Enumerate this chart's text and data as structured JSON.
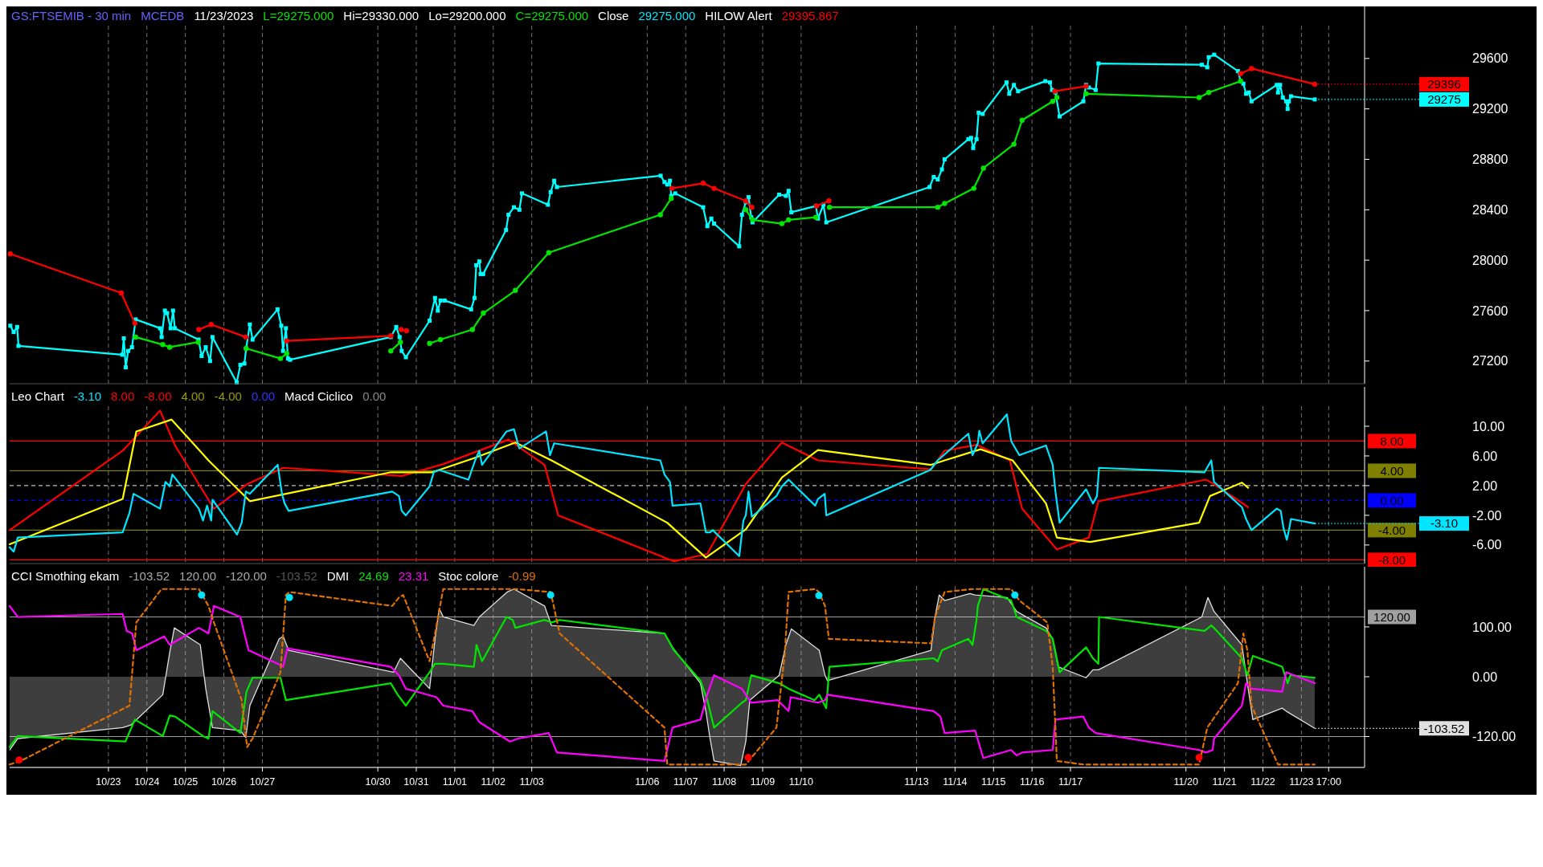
{
  "chart_data": [
    {
      "type": "line",
      "xlim": [
        "--10-20T10:24",
        "--11-24T15:24"
      ],
      "ylim": [
        27020,
        29860
      ],
      "yticks": [
        27200,
        27600,
        28000,
        28400,
        28800,
        29200,
        29600
      ],
      "xticks": [
        "--10-23",
        "--10-24",
        "--10-25",
        "--10-26",
        "--10-27",
        "--10-30",
        "--10-31",
        "--11-01",
        "--11-02",
        "--11-03",
        "--11-06",
        "--11-07",
        "--11-08",
        "--11-09",
        "--11-10",
        "--11-13",
        "--11-14",
        "--11-15",
        "--11-16",
        "--11-17",
        "--11-20",
        "--11-21",
        "--11-22",
        "--11-23",
        "--11-23T17:00"
      ],
      "tick_labels": "y",
      "grid": "x",
      "annotations": [
        "GS:FTSEMIB - 30 min",
        "MCEDB",
        "11/23/2023",
        "L=29275.000",
        "Hi=29330.000",
        "Lo=29200.000",
        "C=29275.000",
        "Close",
        "29275.000",
        "HILOW Alert",
        "29395.867",
        {
          "text": "29396",
          "x": "--11-23T08:18",
          "y": 29396
        },
        {
          "text": "29275",
          "x": "--11-23T08:18",
          "y": 29275
        }
      ],
      "series": [
        {
          "color": "#00ffff",
          "marker": "square",
          "x": [
            "--10-20T10:48",
            "--10-20T12:54",
            "--10-20T15:06",
            "--10-20T15:54",
            "--10-23T08:36",
            "--10-23T09:36",
            "--10-23T10:48",
            "--10-23T12:18",
            "--10-23T14:42",
            "--10-23T17:00",
            "--10-24T08:12",
            "--10-24T09:12",
            "--10-24T11:12",
            "--10-24T12:36",
            "--10-24T14:48",
            "--10-24T16:18",
            "--10-24T17:24",
            "--10-25T08:12",
            "--10-25T10:06",
            "--10-25T12:42",
            "--10-25T15:24",
            "--10-25T16:54",
            "--10-26T08:00",
            "--10-26T10:18",
            "--10-26T12:48",
            "--10-26T13:54",
            "--10-26T16:12",
            "--10-26T17:54",
            "--10-27T09:30",
            "--10-27T11:48",
            "--10-27T12:54",
            "--10-27T14:42",
            "--10-27T16:00",
            "--10-27T17:18",
            "--10-30T08:06",
            "--10-30T11:30",
            "--10-30T13:36",
            "--10-30T14:54",
            "--10-30T17:30",
            "--10-31T08:18",
            "--10-31T11:42",
            "--10-31T13:24",
            "--10-31T15:06",
            "--10-31T17:42",
            "--11-01T10:12",
            "--11-01T12:18",
            "--11-01T13:24",
            "--11-01T15:18",
            "--11-01T16:06",
            "--11-01T17:42",
            "--11-02T08:00",
            "--11-02T09:30",
            "--11-02T12:54",
            "--11-02T16:18",
            "--11-02T17:54",
            "--11-03T10:06",
            "--11-03T11:48",
            "--11-03T14:00",
            "--11-03T15:42",
            "--11-06T08:24",
            "--11-06T10:48",
            "--11-06T12:30",
            "--11-06T14:12",
            "--11-06T15:00",
            "--11-06T17:30",
            "--11-07T10:54",
            "--11-07T13:30",
            "--11-07T16:00",
            "--11-07T17:42",
            "--11-08T09:24",
            "--11-08T11:06",
            "--11-08T13:30",
            "--11-08T15:12",
            "--11-08T16:54",
            "--11-08T17:42",
            "--11-09T10:18",
            "--11-09T14:30",
            "--11-09T16:12",
            "--11-09T17:54",
            "--11-10T09:12",
            "--11-10T10:30",
            "--11-10T13:54",
            "--11-10T15:42",
            "--11-13T08:06",
            "--11-13T10:42",
            "--11-13T13:12",
            "--11-13T15:48",
            "--11-13T17:30",
            "--11-14T08:18",
            "--11-14T10:00",
            "--11-14T11:18",
            "--11-14T13:24",
            "--11-14T14:42",
            "--11-14T17:12",
            "--11-15T08:06",
            "--11-15T09:48",
            "--11-15T12:42",
            "--11-15T15:18",
            "--11-16T08:18",
            "--11-16T11:12",
            "--11-16T12:30",
            "--11-16T14:36",
            "--11-16T17:12",
            "--11-17T08:00",
            "--11-17T09:42",
            "--11-17T11:24",
            "--11-17T15:42",
            "--11-17T17:24",
            "--11-20T09:54",
            "--11-20T13:18",
            "--11-20T14:12",
            "--11-20T17:36",
            "--11-21T08:24",
            "--11-21T10:06",
            "--11-21T11:48",
            "--11-21T13:30",
            "--11-21T15:12",
            "--11-21T16:54",
            "--11-22T08:36",
            "--11-22T09:24",
            "--11-22T10:42",
            "--11-22T12:24",
            "--11-22T14:30",
            "--11-22T15:24",
            "--11-22T16:12",
            "--11-22T17:30",
            "--11-23T08:18"
          ],
          "values": [
            27480,
            27430,
            27470,
            27320,
            27250,
            27380,
            27150,
            27280,
            27310,
            27530,
            27460,
            27390,
            27600,
            27580,
            27460,
            27600,
            27460,
            27370,
            27240,
            27310,
            27200,
            27390,
            27030,
            27170,
            27180,
            27300,
            27490,
            27370,
            27610,
            27480,
            27280,
            27460,
            27220,
            27210,
            27390,
            27470,
            27390,
            27280,
            27230,
            27520,
            27700,
            27600,
            27680,
            27680,
            27610,
            27700,
            27960,
            27990,
            27890,
            27890,
            28240,
            28360,
            28420,
            28400,
            28530,
            28440,
            28540,
            28630,
            28580,
            28670,
            28620,
            28600,
            28630,
            28510,
            28530,
            28420,
            28270,
            28330,
            28290,
            28110,
            28360,
            28460,
            28500,
            28340,
            28300,
            28520,
            28510,
            28550,
            28380,
            28430,
            28330,
            28440,
            28300,
            28580,
            28660,
            28640,
            28720,
            28800,
            28960,
            28970,
            28890,
            28960,
            29170,
            29160,
            29410,
            29320,
            29390,
            29340,
            29420,
            29410,
            29350,
            29330,
            29140,
            29260,
            29390,
            29370,
            29350,
            29560,
            29550,
            29530,
            29610,
            29630,
            29500,
            29420,
            29400,
            29320,
            29330,
            29260,
            29390,
            29330,
            29390,
            29290,
            29260,
            29200,
            29260,
            29300,
            29275
          ]
        },
        {
          "color": "#ff0000",
          "marker": "circle",
          "x": [
            "--10-20T10:48",
            "--10-23T08:00",
            "--10-23T16:30",
            "--10-24T13:36",
            "--10-25T08:24",
            "--10-25T16:06",
            "--10-26T13:42",
            "--10-27T09:36",
            "--10-27T15:12",
            "--10-30T08:06",
            "--10-30T11:36",
            "--10-30T14:30",
            "--10-30T17:54",
            "--11-02T11:36",
            "--11-06T15:24",
            "--11-07T10:54",
            "--11-07T17:42",
            "--11-08T13:30",
            "--11-08T17:18",
            "--11-09T13:36",
            "--11-10T09:36",
            "--11-10T17:18",
            "--11-14T16:36",
            "--11-16T14:12",
            "--11-17T09:42",
            "--11-20T09:36",
            "--11-21T10:06",
            "--11-21T16:54",
            "--11-23T08:18"
          ],
          "values": [
            28050,
            27740,
            27500,
            null,
            27450,
            27490,
            27390,
            null,
            27360,
            27400,
            null,
            27450,
            27440,
            null,
            28570,
            28610,
            28570,
            28470,
            28420,
            null,
            28430,
            28470,
            null,
            29340,
            29380,
            null,
            29480,
            29520,
            29396
          ]
        },
        {
          "color": "#00e600",
          "marker": "circle",
          "x": [
            "--10-23T17:00",
            "--10-24T09:54",
            "--10-24T14:12",
            "--10-25T08:00",
            "--10-25T16:36",
            "--10-26T13:54",
            "--10-27T11:18",
            "--10-27T15:12",
            "--10-27T16:36",
            "--10-30T08:06",
            "--10-30T14:06",
            "--10-30T16:36",
            "--10-31T08:18",
            "--10-31T15:06",
            "--11-01T11:00",
            "--11-01T17:48",
            "--11-02T13:48",
            "--11-03T10:36",
            "--11-06T08:12",
            "--11-06T15:00",
            "--11-07T14:36",
            "--11-08T13:30",
            "--11-08T17:42",
            "--11-09T12:00",
            "--11-09T16:12",
            "--11-10T09:12",
            "--11-10T13:36",
            "--11-10T17:42",
            "--11-13T13:12",
            "--11-13T17:30",
            "--11-14T11:42",
            "--11-14T17:42",
            "--11-15T12:42",
            "--11-15T17:48",
            "--11-16T12:54",
            "--11-16T15:30",
            "--11-16T17:36",
            "--11-17T09:42",
            "--11-20T08:12",
            "--11-20T14:12",
            "--11-21T10:06"
          ],
          "values": [
            27390,
            27330,
            27310,
            27350,
            null,
            27300,
            27220,
            27260,
            null,
            27280,
            27350,
            null,
            27340,
            27370,
            27450,
            27580,
            27760,
            28060,
            28360,
            28490,
            null,
            28400,
            28320,
            28290,
            28320,
            28340,
            null,
            28420,
            28420,
            28450,
            28570,
            28730,
            28920,
            29110,
            29260,
            29290,
            null,
            29320,
            29290,
            29330,
            29420
          ]
        }
      ]
    },
    {
      "type": "line",
      "xlim": [
        "--10-20T10:24",
        "--11-24T15:24"
      ],
      "ylim": [
        -8.5,
        12.7
      ],
      "yticks": [
        {
          "value": 10,
          "label": "10.00"
        },
        {
          "value": 6,
          "label": "6.00"
        },
        {
          "value": 2,
          "label": "2.00"
        },
        {
          "value": -2,
          "label": "-2.00"
        },
        {
          "value": -6,
          "label": "-6.00"
        }
      ],
      "xticks": [
        "--10-23",
        "--10-24",
        "--10-25",
        "--10-26",
        "--10-27",
        "--10-30",
        "--10-31",
        "--11-01",
        "--11-02",
        "--11-03",
        "--11-06",
        "--11-07",
        "--11-08",
        "--11-09",
        "--11-10",
        "--11-13",
        "--11-14",
        "--11-15",
        "--11-16",
        "--11-17",
        "--11-20",
        "--11-21",
        "--11-22",
        "--11-23",
        "--11-23T17:00"
      ],
      "tick_labels": "y",
      "grid": "x",
      "annotations": [
        "Leo Chart",
        "-3.10",
        "8.00",
        "-8.00",
        "4.00",
        "-4.00",
        "0.00",
        "Macd Ciclico",
        "0.00",
        {
          "text": "-3.10",
          "x": "--11-23T08:18",
          "y": -3.1
        }
      ],
      "ref_lines": [
        {
          "axis": "y",
          "value": 8,
          "label": "8.00",
          "color": "#ff0000"
        },
        {
          "axis": "y",
          "value": 4,
          "label": "4.00",
          "color": "#808000"
        },
        {
          "axis": "y",
          "value": 2,
          "color": "#c0c0c0",
          "line_style": "dashed"
        },
        {
          "axis": "y",
          "value": 0,
          "label": "0.00",
          "color": "#0000ff",
          "line_style": "dashed"
        },
        {
          "axis": "y",
          "value": -4,
          "label": "-4.00",
          "color": "#808000"
        },
        {
          "axis": "y",
          "value": -8,
          "label": "-8.00",
          "color": "#ff0000"
        }
      ],
      "series": [
        {
          "color": "#ff0000",
          "x": [
            "--10-20T10:24",
            "--10-23T08:54",
            "--10-24T08:12",
            "--10-24T17:36",
            "--10-25T17:48",
            "--10-26T14:30",
            "--10-27T13:00",
            "--10-30T14:54",
            "--10-31T16:48",
            "--11-02T09:30",
            "--11-03T08:00",
            "--11-03T16:30",
            "--11-06T16:42",
            "--11-07T13:30",
            "--11-08T13:30",
            "--11-09T12:00",
            "--11-10T10:30",
            "--11-13T09:00",
            "--11-13T17:30",
            "--11-14T13:24",
            "--11-15T10:12",
            "--11-15T17:48",
            "--11-16T15:30",
            "--11-17T11:24",
            "--11-17T17:24",
            "--11-20T12:24",
            "--11-20T16:42",
            "--11-21T14:48"
          ],
          "values": [
            -4.0,
            6.7,
            12.1,
            7.4,
            -1.1,
            2.2,
            4.4,
            3.3,
            4.9,
            8.2,
            4.8,
            -2.0,
            -8.2,
            -7.2,
            2.2,
            7.8,
            5.4,
            4.2,
            6.7,
            7.5,
            5.4,
            -1.1,
            -6.6,
            -5.0,
            -0.1,
            2.8,
            2.3,
            -0.9
          ]
        },
        {
          "color": "#ffff00",
          "x": [
            "--10-20T10:24",
            "--10-23T08:54",
            "--10-23T17:24",
            "--10-24T15:24",
            "--10-25T14:24",
            "--10-26T16:12",
            "--10-30T08:06",
            "--10-31T10:00",
            "--11-01T11:54",
            "--11-02T13:48",
            "--11-03T12:18",
            "--11-06T12:30",
            "--11-07T12:36",
            "--11-08T13:30",
            "--11-09T12:00",
            "--11-10T10:30",
            "--11-13T09:00",
            "--11-13T17:30",
            "--11-14T15:54",
            "--11-15T11:54",
            "--11-16T08:42",
            "--11-16T15:30",
            "--11-17T12:18",
            "--11-20T08:12",
            "--11-20T15:00",
            "--11-21T10:54",
            "--11-21T14:48"
          ],
          "values": [
            -5.9,
            0.2,
            9.3,
            10.9,
            5.4,
            -0.1,
            3.8,
            3.8,
            5.7,
            7.8,
            5.4,
            -3.0,
            -7.7,
            -3.9,
            3.1,
            6.8,
            4.8,
            5.4,
            6.9,
            5.4,
            -0.4,
            -5.0,
            -5.6,
            -3.0,
            0.6,
            2.4,
            1.7
          ]
        },
        {
          "color": "#00e5ff",
          "x": [
            "--10-20T10:24",
            "--10-20T12:54",
            "--10-20T15:30",
            "--10-23T08:54",
            "--10-23T13:06",
            "--10-23T15:42",
            "--10-24T08:12",
            "--10-24T11:36",
            "--10-24T14:12",
            "--10-24T15:54",
            "--10-25T08:24",
            "--10-25T11:00",
            "--10-25T13:30",
            "--10-25T16:06",
            "--10-25T16:54",
            "--10-26T08:12",
            "--10-26T11:06",
            "--10-26T13:42",
            "--10-26T16:12",
            "--10-27T09:36",
            "--10-27T12:12",
            "--10-27T13:54",
            "--10-27T16:24",
            "--10-30T09:00",
            "--10-30T13:12",
            "--10-30T14:54",
            "--10-30T17:30",
            "--10-31T08:18",
            "--10-31T10:54",
            "--10-31T14:18",
            "--11-01T08:30",
            "--11-01T12:42",
            "--11-01T15:18",
            "--11-01T17:00",
            "--11-02T08:18",
            "--11-02T12:54",
            "--11-02T16:18",
            "--11-03T08:54",
            "--11-03T11:24",
            "--11-03T14:00",
            "--11-06T08:12",
            "--11-06T10:48",
            "--11-06T14:12",
            "--11-06T15:48",
            "--11-07T09:12",
            "--11-07T12:36",
            "--11-07T15:12",
            "--11-07T16:54",
            "--11-08T09:24",
            "--11-08T12:00",
            "--11-08T13:30",
            "--11-08T15:12",
            "--11-08T17:18",
            "--11-09T08:36",
            "--11-09T12:00",
            "--11-09T16:12",
            "--11-10T08:48",
            "--11-10T10:30",
            "--11-10T14:42",
            "--11-10T15:42",
            "--11-13T08:30",
            "--11-13T13:12",
            "--11-14T08:18",
            "--11-14T10:54",
            "--11-14T14:12",
            "--11-14T15:06",
            "--11-14T17:12",
            "--11-15T08:18",
            "--11-15T11:00",
            "--11-15T16:06",
            "--11-16T08:42",
            "--11-16T12:54",
            "--11-16T14:36",
            "--11-16T17:12",
            "--11-17T09:42",
            "--11-17T14:00",
            "--11-17T16:30",
            "--11-17T17:48",
            "--11-20T11:36",
            "--11-20T15:48",
            "--11-20T17:30",
            "--11-21T10:54",
            "--11-21T13:30",
            "--11-21T16:54",
            "--11-22T08:36",
            "--11-22T11:06",
            "--11-22T12:48",
            "--11-22T14:54",
            "--11-22T16:12",
            "--11-22T17:30",
            "--11-23T08:18"
          ],
          "values": [
            -6.3,
            -6.9,
            -5.0,
            -4.3,
            -1.7,
            0.9,
            -1.1,
            2.5,
            1.9,
            3.5,
            -1.1,
            -2.7,
            -0.7,
            -2.7,
            0.1,
            -4.6,
            -3.0,
            1.2,
            0.9,
            4.8,
            0.9,
            -0.4,
            -1.4,
            1.2,
            0.6,
            -1.4,
            -2.0,
            1.9,
            3.8,
            4.1,
            2.8,
            5.4,
            6.7,
            4.8,
            9.3,
            9.6,
            7.0,
            9.3,
            6.1,
            7.7,
            5.4,
            3.5,
            2.5,
            -0.7,
            -0.4,
            -4.3,
            -4.3,
            -4.0,
            -7.5,
            -2.7,
            -2.0,
            1.2,
            -2.2,
            0.6,
            1.9,
            2.8,
            -0.7,
            0.2,
            0.9,
            -2.0,
            4.1,
            5.4,
            9.0,
            6.1,
            7.7,
            9.4,
            7.7,
            11.6,
            8.0,
            6.1,
            7.4,
            4.8,
            1.2,
            -3.0,
            1.5,
            -0.4,
            0.6,
            4.4,
            3.8,
            5.4,
            2.5,
            -0.9,
            -2.5,
            -4.0,
            -1.1,
            -1.4,
            -3.7,
            -5.3,
            -4.0,
            -2.5,
            -3.1
          ]
        }
      ]
    },
    {
      "type": "line",
      "xlim": [
        "--10-20T10:24",
        "--11-24T15:24"
      ],
      "ylim": [
        -182,
        182
      ],
      "yticks": [
        {
          "value": 100,
          "label": "100.00"
        },
        {
          "value": 0,
          "label": "0.00"
        },
        {
          "value": -120,
          "label": "-120.00"
        }
      ],
      "xticks": [
        {
          "value": "--10-23",
          "label": "10/23"
        },
        {
          "value": "--10-24",
          "label": "10/24"
        },
        {
          "value": "--10-25",
          "label": "10/25"
        },
        {
          "value": "--10-26",
          "label": "10/26"
        },
        {
          "value": "--10-27",
          "label": "10/27"
        },
        {
          "value": "--10-30",
          "label": "10/30"
        },
        {
          "value": "--10-31",
          "label": "10/31"
        },
        {
          "value": "--11-01",
          "label": "11/01"
        },
        {
          "value": "--11-02",
          "label": "11/02"
        },
        {
          "value": "--11-03",
          "label": "11/03"
        },
        {
          "value": "--11-06",
          "label": "11/06"
        },
        {
          "value": "--11-07",
          "label": "11/07"
        },
        {
          "value": "--11-08",
          "label": "11/08"
        },
        {
          "value": "--11-09",
          "label": "11/09"
        },
        {
          "value": "--11-10",
          "label": "11/10"
        },
        {
          "value": "--11-13",
          "label": "11/13"
        },
        {
          "value": "--11-14",
          "label": "11/14"
        },
        {
          "value": "--11-15",
          "label": "11/15"
        },
        {
          "value": "--11-16",
          "label": "11/16"
        },
        {
          "value": "--11-17",
          "label": "11/17"
        },
        {
          "value": "--11-20",
          "label": "11/20"
        },
        {
          "value": "--11-21",
          "label": "11/21"
        },
        {
          "value": "--11-22",
          "label": "11/22"
        },
        {
          "value": "--11-23",
          "label": "11/23"
        },
        {
          "value": "--11-23T17:00",
          "label": "17:00"
        }
      ],
      "grid": "x",
      "annotations": [
        "CCI Smothing ekam",
        "-103.52",
        "120.00",
        "-120.00",
        "-103.52",
        "DMI",
        "24.69",
        "23.31",
        "Stoc colore",
        "-0.99",
        {
          "text": "-103.52",
          "x": "--11-23T08:18",
          "y": -103.52
        }
      ],
      "ref_lines": [
        {
          "axis": "y",
          "value": 120,
          "label": "120.00",
          "color": "#a0a0a0"
        },
        {
          "axis": "y",
          "value": -120,
          "color": "#a0a0a0"
        }
      ],
      "series": [
        {
          "type": "area",
          "color": "#e0e0e0",
          "x": [
            "--10-20T10:24",
            "--10-20T15:30",
            "--10-23T08:54",
            "--10-23T14:00",
            "--10-24T09:54",
            "--10-24T14:12",
            "--10-24T17:06",
            "--10-25T09:18",
            "--10-25T12:42",
            "--10-25T16:54",
            "--10-26T10:18",
            "--10-26T13:42",
            "--10-26T16:12",
            "--10-27T10:30",
            "--10-27T13:00",
            "--10-27T16:24",
            "--10-30T09:48",
            "--10-30T14:06",
            "--10-31T08:18",
            "--10-31T11:42",
            "--10-31T14:18",
            "--10-31T16:48",
            "--11-01T11:54",
            "--11-01T15:18",
            "--11-02T08:42",
            "--11-02T12:54",
            "--11-03T08:00",
            "--11-03T12:18",
            "--11-06T10:48",
            "--11-06T15:48",
            "--11-07T09:12",
            "--11-07T12:36",
            "--11-07T15:12",
            "--11-07T17:42",
            "--11-08T10:18",
            "--11-08T13:30",
            "--11-08T16:00",
            "--11-09T10:18",
            "--11-09T14:30",
            "--11-09T17:54",
            "--11-10T11:18",
            "--11-10T14:54",
            "--11-10T16:24",
            "--11-13T09:00",
            "--11-13T11:30",
            "--11-13T14:06",
            "--11-13T17:30",
            "--11-14T09:12",
            "--11-14T12:30",
            "--11-15T08:30",
            "--11-15T14:24",
            "--11-16T08:42",
            "--11-16T12:54",
            "--11-16T16:18",
            "--11-17T09:42",
            "--11-17T14:00",
            "--11-17T17:24",
            "--11-20T09:54",
            "--11-20T13:42",
            "--11-20T17:30",
            "--11-21T10:54",
            "--11-21T14:18",
            "--11-21T17:42",
            "--11-22T12:00",
            "--11-22T14:30",
            "--11-23T08:18"
          ],
          "values": [
            -147,
            -124,
            -102,
            -97,
            -36,
            48,
            98,
            64,
            -24,
            -102,
            -108,
            -122,
            -58,
            76,
            81,
            53,
            9,
            37,
            -24,
            76,
            137,
            120,
            103,
            120,
            170,
            176,
            142,
            103,
            87,
            59,
            -13,
            -69,
            -124,
            -169,
            -178,
            -130,
            -47,
            3,
            64,
            96,
            53,
            3,
            -8,
            53,
            120,
            164,
            153,
            167,
            164,
            159,
            131,
            98,
            76,
            20,
            -2,
            14,
            14,
            120,
            159,
            131,
            64,
            -13,
            -86,
            -63,
            -69,
            -103.52
          ]
        },
        {
          "color": "#00e600",
          "x": [
            "--10-20T10:24",
            "--10-20T15:30",
            "--10-23T10:36",
            "--10-23T16:30",
            "--10-24T09:54",
            "--10-24T14:12",
            "--10-24T17:36",
            "--10-25T11:00",
            "--10-25T14:24",
            "--10-25T16:54",
            "--10-26T10:18",
            "--10-26T14:06",
            "--10-26T17:54",
            "--10-27T11:18",
            "--10-27T14:42",
            "--10-30T08:06",
            "--10-30T12:24",
            "--10-30T17:30",
            "--10-31T08:18",
            "--10-31T11:42",
            "--10-31T16:48",
            "--11-01T11:54",
            "--11-01T13:36",
            "--11-01T17:00",
            "--11-02T08:18",
            "--11-02T12:06",
            "--11-02T13:48",
            "--11-03T08:00",
            "--11-03T12:18",
            "--11-03T17:24",
            "--11-06T10:48",
            "--11-06T16:42",
            "--11-07T09:12",
            "--11-07T13:30",
            "--11-07T17:42",
            "--11-08T11:06",
            "--11-08T13:30",
            "--11-08T16:54",
            "--11-09T10:18",
            "--11-09T16:12",
            "--11-10T08:24",
            "--11-10T11:18",
            "--11-10T15:36",
            "--11-10T17:42",
            "--11-13T10:42",
            "--11-13T13:12",
            "--11-13T15:48",
            "--11-14T08:18",
            "--11-14T10:54",
            "--11-14T13:24",
            "--11-14T14:12",
            "--11-14T17:36",
            "--11-15T11:00",
            "--11-15T14:24",
            "--11-16T08:42",
            "--11-16T12:54",
            "--11-16T17:12",
            "--11-17T09:42",
            "--11-17T14:00",
            "--11-17T17:24",
            "--11-17T17:48",
            "--11-20T11:36",
            "--11-20T15:48",
            "--11-20T17:30",
            "--11-21T10:54",
            "--11-21T14:18",
            "--11-21T17:42",
            "--11-22T12:00",
            "--11-22T15:24",
            "--11-22T17:06",
            "--11-23T08:18"
          ],
          "values": [
            -141,
            -119,
            -130,
            -86,
            -119,
            -78,
            -80,
            -119,
            -124,
            -69,
            -113,
            -30,
            -2,
            -2,
            -47,
            -13,
            -36,
            -58,
            9,
            26,
            26,
            20,
            64,
            31,
            120,
            114,
            98,
            114,
            109,
            114,
            87,
            53,
            -8,
            -47,
            -102,
            -52,
            -47,
            3,
            -13,
            -24,
            -47,
            -36,
            -63,
            20,
            37,
            31,
            53,
            76,
            64,
            114,
            142,
            176,
            153,
            120,
            92,
            76,
            9,
            59,
            37,
            26,
            120,
            92,
            103,
            98,
            37,
            3,
            42,
            20,
            -13,
            3,
            -2
          ]
        },
        {
          "color": "#ff00ff",
          "x": [
            "--10-20T10:24",
            "--10-20T15:30",
            "--10-23T08:54",
            "--10-23T11:24",
            "--10-23T14:48",
            "--10-23T17:24",
            "--10-24T10:48",
            "--10-24T14:12",
            "--10-25T08:24",
            "--10-25T14:24",
            "--10-25T17:48",
            "--10-26T10:18",
            "--10-26T12:48",
            "--10-26T15:24",
            "--10-27T09:36",
            "--10-27T13:00",
            "--10-27T15:36",
            "--10-30T08:06",
            "--10-30T13:12",
            "--10-30T17:30",
            "--10-31T12:36",
            "--10-31T16:48",
            "--11-01T11:00",
            "--11-01T15:18",
            "--11-02T10:24",
            "--11-02T15:30",
            "--11-03T10:36",
            "--11-03T15:42",
            "--11-06T10:48",
            "--11-06T15:48",
            "--11-07T09:12",
            "--11-07T13:30",
            "--11-07T17:42",
            "--11-08T11:06",
            "--11-08T13:30",
            "--11-08T16:54",
            "--11-09T09:24",
            "--11-09T16:12",
            "--11-09T17:30",
            "--11-10T10:30",
            "--11-10T14:54",
            "--11-10T16:24",
            "--11-13T10:42",
            "--11-13T14:54",
            "--11-13T17:30",
            "--11-14T12:30",
            "--11-14T17:36",
            "--11-15T11:00",
            "--11-15T14:24",
            "--11-15T17:48",
            "--11-16T12:54",
            "--11-16T14:36",
            "--11-17T08:00",
            "--11-17T11:24",
            "--11-17T15:42",
            "--11-20T08:12",
            "--11-20T12:24",
            "--11-20T16:42",
            "--11-20T17:30",
            "--11-21T10:54",
            "--11-21T13:30",
            "--11-21T16:54",
            "--11-22T12:00",
            "--11-22T14:30",
            "--11-23T08:18"
          ],
          "values": [
            142,
            120,
            126,
            92,
            87,
            53,
            81,
            64,
            98,
            87,
            142,
            120,
            87,
            53,
            26,
            20,
            57,
            20,
            3,
            -24,
            -41,
            -58,
            -69,
            -91,
            -130,
            -124,
            -113,
            -152,
            -169,
            -102,
            -86,
            -36,
            3,
            -24,
            -36,
            -52,
            -47,
            -69,
            -41,
            -52,
            -47,
            -36,
            -69,
            -80,
            -113,
            -108,
            -163,
            -147,
            -158,
            -152,
            -147,
            -86,
            -80,
            -102,
            -113,
            -147,
            -152,
            -147,
            -124,
            -58,
            -13,
            -24,
            -30,
            9,
            -13
          ]
        },
        {
          "color": "#e07000",
          "line_style": "dashed",
          "x": [
            "--10-20T10:24",
            "--10-20T17:12",
            "--10-23T13:06",
            "--10-23T17:24",
            "--10-24T09:06",
            "--10-25T08:24",
            "--10-25T14:24",
            "--10-25T17:48",
            "--10-26T11:06",
            "--10-26T14:30",
            "--10-26T17:54",
            "--10-27T11:18",
            "--10-27T14:42",
            "--10-27T16:54",
            "--10-30T09:00",
            "--10-30T13:12",
            "--10-30T15:48",
            "--10-31T08:18",
            "--10-31T11:42",
            "--10-31T16:48",
            "--11-02T13:48",
            "--11-03T11:48",
            "--11-03T17:24",
            "--11-06T10:48",
            "--11-06T12:30",
            "--11-08T13:30",
            "--11-09T08:36",
            "--11-09T13:42",
            "--11-09T16:12",
            "--11-10T08:48",
            "--11-10T11:06",
            "--11-10T14:54",
            "--11-10T17:18",
            "--11-13T09:00",
            "--11-13T11:30",
            "--11-13T17:30",
            "--11-14T10:54",
            "--11-15T11:00",
            "--11-15T16:06",
            "--11-16T09:30",
            "--11-16T12:54",
            "--11-16T15:30",
            "--11-17T08:00",
            "--11-20T08:12",
            "--11-20T13:18",
            "--11-21T08:24",
            "--11-21T11:48",
            "--11-21T14:18",
            "--11-21T16:54",
            "--11-22T09:24",
            "--11-23T08:18"
          ],
          "values": [
            -176,
            -169,
            -58,
            109,
            176,
            176,
            142,
            109,
            -47,
            -141,
            -124,
            9,
            164,
            170,
            142,
            159,
            164,
            31,
            87,
            176,
            176,
            170,
            87,
            -102,
            -176,
            -176,
            -102,
            42,
            170,
            176,
            170,
            142,
            76,
            67,
            120,
            170,
            176,
            176,
            153,
            109,
            20,
            -169,
            -176,
            -176,
            -102,
            -13,
            87,
            53,
            -58,
            -176,
            -176
          ]
        },
        {
          "type": "scatter",
          "color": "#00e5ff",
          "x": [
            "--10-25T10:06",
            "--10-27T16:54",
            "--11-03T11:48",
            "--11-10T11:06",
            "--11-15T13:18"
          ],
          "values": [
            164,
            159,
            164,
            163,
            164
          ]
        },
        {
          "type": "scatter",
          "color": "#ff0000",
          "x": [
            "--10-20T16:18",
            "--11-08T15:00",
            "--11-20T08:12"
          ],
          "values": [
            -167,
            -162,
            -162
          ]
        }
      ]
    }
  ]
}
